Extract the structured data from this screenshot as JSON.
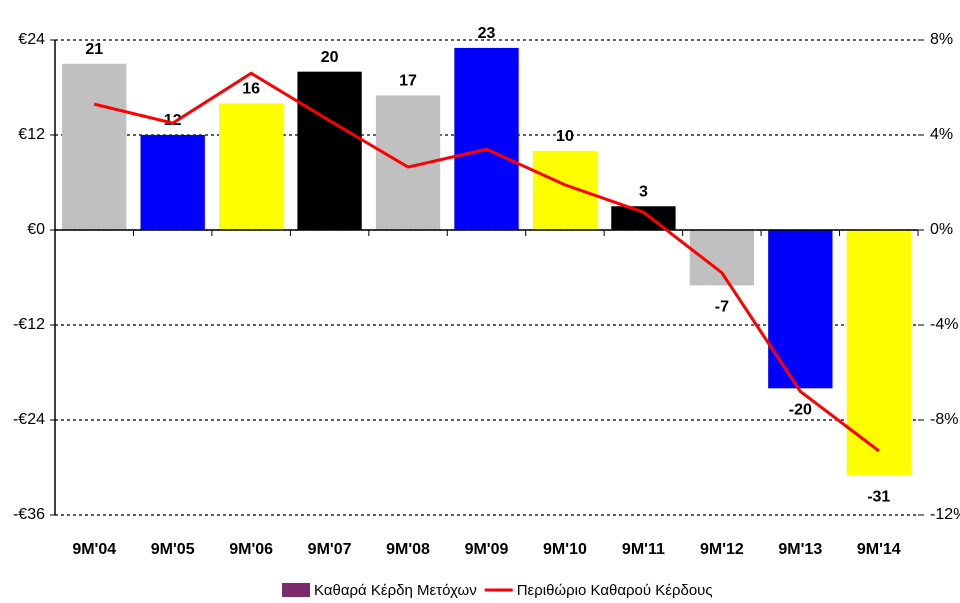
{
  "chart_data": {
    "type": "bar-line",
    "categories": [
      "9M'04",
      "9M'05",
      "9M'06",
      "9M'07",
      "9M'08",
      "9M'09",
      "9M'10",
      "9M'11",
      "9M'12",
      "9M'13",
      "9M'14"
    ],
    "series": [
      {
        "name": "Καθαρά Κέρδη Μετόχων",
        "type": "bar",
        "color": "#7b2a6b",
        "colors": [
          "#c0c0c0",
          "#0000ff",
          "#ffff00",
          "#000000",
          "#c0c0c0",
          "#0000ff",
          "#ffff00",
          "#000000",
          "#c0c0c0",
          "#0000ff",
          "#ffff00"
        ],
        "values": [
          21,
          12,
          16,
          20,
          17,
          23,
          10,
          3,
          -7,
          -20,
          -31
        ]
      },
      {
        "name": "Περιθώριο Καθαρού Κέρδους",
        "type": "line",
        "axis": "y2",
        "color": "#ff0000",
        "values": [
          5.3,
          4.5,
          6.6,
          4.6,
          2.65,
          3.4,
          1.9,
          0.75,
          -1.8,
          -6.8,
          -9.3
        ]
      }
    ],
    "ylim": [
      -36,
      24
    ],
    "yticks": [
      {
        "value": 24,
        "label": "€24"
      },
      {
        "value": 12,
        "label": "€12"
      },
      {
        "value": 0,
        "label": "€0"
      },
      {
        "value": -12,
        "label": "-€12"
      },
      {
        "value": -24,
        "label": "-€24"
      },
      {
        "value": -36,
        "label": "-€36"
      }
    ],
    "y2lim": [
      -12,
      8
    ],
    "y2ticks": [
      {
        "value": 8,
        "label": "8%"
      },
      {
        "value": 4,
        "label": "4%"
      },
      {
        "value": 0,
        "label": "0%"
      },
      {
        "value": -4,
        "label": "-4%"
      },
      {
        "value": -8,
        "label": "-8%"
      },
      {
        "value": -12,
        "label": "-12%"
      }
    ],
    "grid": true,
    "legend": "bottom"
  }
}
